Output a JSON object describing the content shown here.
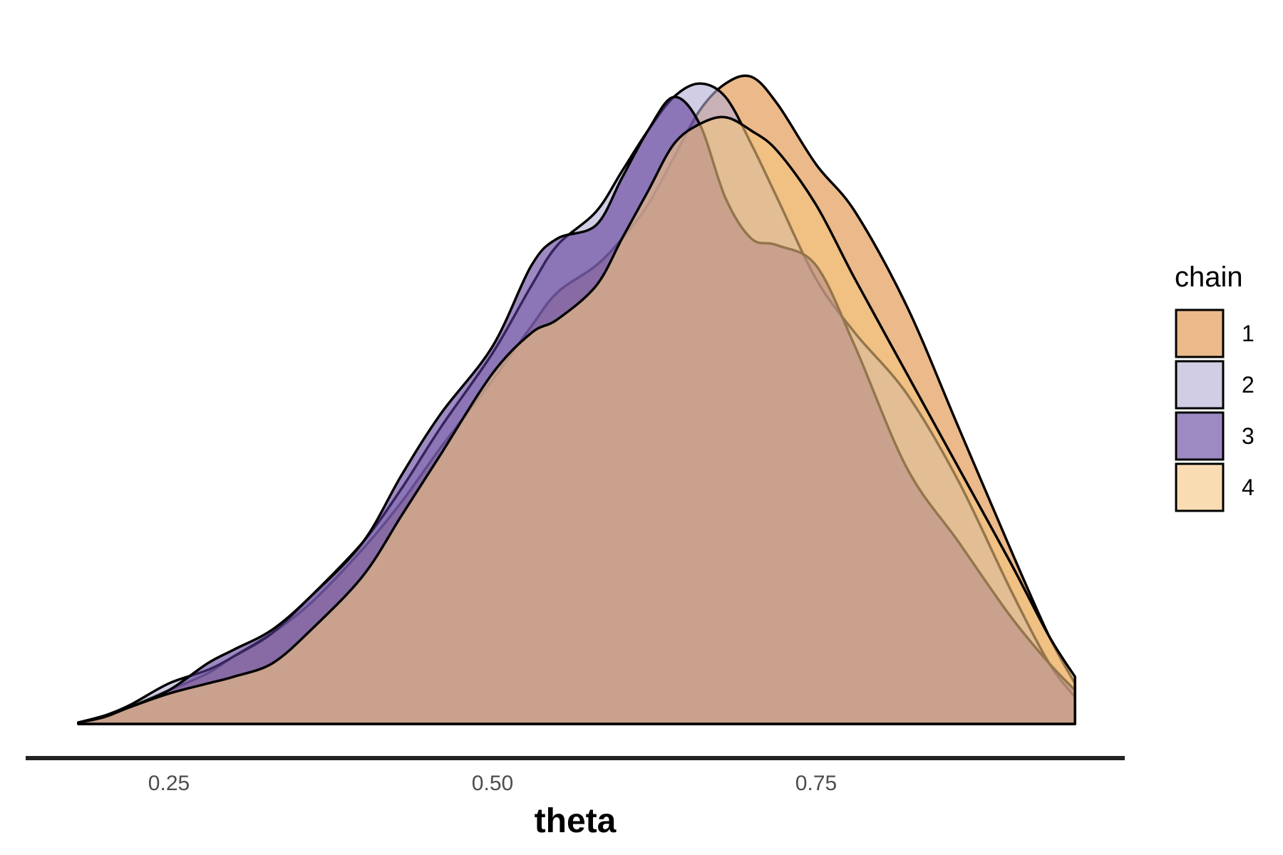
{
  "chart_data": {
    "type": "area",
    "xlabel": "theta",
    "ylabel": "",
    "xlim": [
      0.18,
      0.95
    ],
    "ylim": [
      0,
      1.0
    ],
    "x_ticks": [
      0.25,
      0.5,
      0.75
    ],
    "x_tick_labels": [
      "0.25",
      "0.50",
      "0.75"
    ],
    "grid": false,
    "legend": {
      "title": "chain",
      "placement": "right"
    },
    "x": [
      0.18,
      0.2,
      0.22,
      0.25,
      0.28,
      0.3,
      0.33,
      0.36,
      0.4,
      0.43,
      0.46,
      0.5,
      0.53,
      0.55,
      0.58,
      0.6,
      0.62,
      0.64,
      0.66,
      0.68,
      0.7,
      0.72,
      0.75,
      0.78,
      0.82,
      0.86,
      0.9,
      0.93,
      0.95
    ],
    "series": [
      {
        "name": "1",
        "color": "#E08A3C",
        "values": [
          0.002,
          0.01,
          0.025,
          0.05,
          0.075,
          0.1,
          0.135,
          0.18,
          0.26,
          0.33,
          0.41,
          0.51,
          0.59,
          0.64,
          0.68,
          0.72,
          0.77,
          0.84,
          0.91,
          0.95,
          0.96,
          0.92,
          0.83,
          0.76,
          0.62,
          0.44,
          0.26,
          0.13,
          0.06
        ]
      },
      {
        "name": "2",
        "color": "#B2ABD2",
        "values": [
          0.002,
          0.012,
          0.028,
          0.06,
          0.08,
          0.1,
          0.135,
          0.19,
          0.27,
          0.35,
          0.44,
          0.55,
          0.65,
          0.71,
          0.76,
          0.82,
          0.88,
          0.93,
          0.95,
          0.93,
          0.86,
          0.78,
          0.66,
          0.58,
          0.49,
          0.36,
          0.2,
          0.09,
          0.04
        ]
      },
      {
        "name": "3",
        "color": "#5E3C99",
        "values": [
          0.002,
          0.012,
          0.025,
          0.05,
          0.09,
          0.11,
          0.14,
          0.19,
          0.27,
          0.37,
          0.46,
          0.56,
          0.68,
          0.72,
          0.74,
          0.81,
          0.88,
          0.93,
          0.89,
          0.78,
          0.72,
          0.71,
          0.68,
          0.56,
          0.38,
          0.27,
          0.16,
          0.09,
          0.05
        ]
      },
      {
        "name": "4",
        "color": "#F5C47E",
        "values": [
          0.002,
          0.01,
          0.025,
          0.045,
          0.06,
          0.07,
          0.09,
          0.14,
          0.22,
          0.31,
          0.4,
          0.52,
          0.58,
          0.6,
          0.65,
          0.72,
          0.79,
          0.86,
          0.89,
          0.9,
          0.88,
          0.85,
          0.77,
          0.66,
          0.52,
          0.38,
          0.24,
          0.13,
          0.07
        ]
      }
    ]
  }
}
